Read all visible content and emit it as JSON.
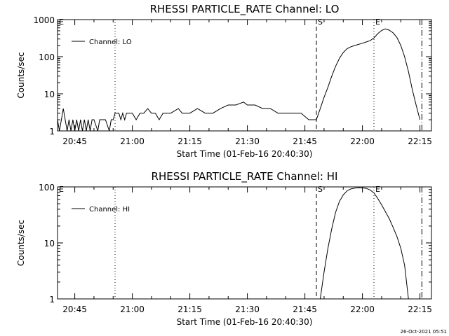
{
  "chart_data": [
    {
      "type": "line",
      "title": "RHESSI PARTICLE_RATE Channel: LO",
      "xlabel": "Start Time (01-Feb-16 20:40:30)",
      "ylabel": "Counts/sec",
      "yscale": "log",
      "ylim": [
        1,
        1000
      ],
      "xlim": [
        "20:40:30",
        "22:18:00"
      ],
      "x_tick_labels": [
        "20:45",
        "21:00",
        "21:15",
        "21:30",
        "21:45",
        "22:00",
        "22:15"
      ],
      "y_tick_labels": [
        "1",
        "10",
        "100",
        "1000"
      ],
      "legend": [
        "Channel: LO"
      ],
      "legend_position": "top-left",
      "markers": [
        {
          "label": "E",
          "time": "20:40:30",
          "style": "dashed"
        },
        {
          "label": "",
          "time": "20:55:30",
          "style": "dotted"
        },
        {
          "label": "S",
          "time": "21:48:00",
          "style": "dashed"
        },
        {
          "label": "E",
          "time": "22:03:00",
          "style": "dotted"
        },
        {
          "label": "",
          "time": "22:15:30",
          "style": "dash-dot"
        }
      ],
      "series": [
        {
          "name": "Channel: LO",
          "points": [
            [
              "20:40:30",
              2
            ],
            [
              "20:41:00",
              1
            ],
            [
              "20:41:30",
              2
            ],
            [
              "20:42:00",
              4
            ],
            [
              "20:42:30",
              2
            ],
            [
              "20:43:00",
              1
            ],
            [
              "20:43:30",
              2
            ],
            [
              "20:44:00",
              1
            ],
            [
              "20:44:30",
              2
            ],
            [
              "20:45:00",
              1
            ],
            [
              "20:45:30",
              2
            ],
            [
              "20:46:00",
              1
            ],
            [
              "20:46:30",
              2
            ],
            [
              "20:47:00",
              1
            ],
            [
              "20:47:30",
              2
            ],
            [
              "20:48:00",
              1
            ],
            [
              "20:48:30",
              2
            ],
            [
              "20:49:00",
              1
            ],
            [
              "20:49:30",
              2
            ],
            [
              "20:50:00",
              2
            ],
            [
              "20:51:00",
              1
            ],
            [
              "20:51:30",
              2
            ],
            [
              "20:52:00",
              2
            ],
            [
              "20:53:00",
              2
            ],
            [
              "20:54:00",
              1
            ],
            [
              "20:54:30",
              2
            ],
            [
              "20:55:00",
              2
            ],
            [
              "20:55:30",
              3
            ],
            [
              "20:56:30",
              3
            ],
            [
              "20:57:00",
              2
            ],
            [
              "20:57:30",
              3
            ],
            [
              "20:58:00",
              2
            ],
            [
              "20:58:30",
              3
            ],
            [
              "21:00:00",
              3
            ],
            [
              "21:01:00",
              2
            ],
            [
              "21:02:00",
              3
            ],
            [
              "21:03:00",
              3
            ],
            [
              "21:04:00",
              4
            ],
            [
              "21:05:00",
              3
            ],
            [
              "21:06:00",
              3
            ],
            [
              "21:07:00",
              2
            ],
            [
              "21:08:00",
              3
            ],
            [
              "21:10:00",
              3
            ],
            [
              "21:12:00",
              4
            ],
            [
              "21:13:00",
              3
            ],
            [
              "21:15:00",
              3
            ],
            [
              "21:17:00",
              4
            ],
            [
              "21:19:00",
              3
            ],
            [
              "21:21:00",
              3
            ],
            [
              "21:23:00",
              4
            ],
            [
              "21:25:00",
              5
            ],
            [
              "21:27:00",
              5
            ],
            [
              "21:29:00",
              6
            ],
            [
              "21:30:00",
              5
            ],
            [
              "21:32:00",
              5
            ],
            [
              "21:34:00",
              4
            ],
            [
              "21:36:00",
              4
            ],
            [
              "21:38:00",
              3
            ],
            [
              "21:40:00",
              3
            ],
            [
              "21:42:00",
              3
            ],
            [
              "21:44:00",
              3
            ],
            [
              "21:46:00",
              2
            ],
            [
              "21:48:00",
              2
            ],
            [
              "21:49:00",
              4
            ],
            [
              "21:50:00",
              8
            ],
            [
              "21:51:00",
              15
            ],
            [
              "21:52:00",
              30
            ],
            [
              "21:53:00",
              55
            ],
            [
              "21:54:00",
              90
            ],
            [
              "21:55:00",
              130
            ],
            [
              "21:56:00",
              165
            ],
            [
              "21:57:00",
              185
            ],
            [
              "21:58:00",
              200
            ],
            [
              "21:59:00",
              215
            ],
            [
              "22:00:00",
              230
            ],
            [
              "22:01:00",
              250
            ],
            [
              "22:02:00",
              270
            ],
            [
              "22:03:00",
              320
            ],
            [
              "22:04:00",
              420
            ],
            [
              "22:05:00",
              510
            ],
            [
              "22:06:00",
              560
            ],
            [
              "22:07:00",
              520
            ],
            [
              "22:08:00",
              440
            ],
            [
              "22:09:00",
              330
            ],
            [
              "22:10:00",
              200
            ],
            [
              "22:11:00",
              100
            ],
            [
              "22:12:00",
              40
            ],
            [
              "22:13:00",
              13
            ],
            [
              "22:14:00",
              5
            ],
            [
              "22:15:00",
              2
            ]
          ]
        }
      ]
    },
    {
      "type": "line",
      "title": "RHESSI PARTICLE_RATE Channel: HI",
      "xlabel": "Start Time (01-Feb-16 20:40:30)",
      "ylabel": "Counts/sec",
      "yscale": "log",
      "ylim": [
        1,
        100
      ],
      "xlim": [
        "20:40:30",
        "22:18:00"
      ],
      "x_tick_labels": [
        "20:45",
        "21:00",
        "21:15",
        "21:30",
        "21:45",
        "22:00",
        "22:15"
      ],
      "y_tick_labels": [
        "1",
        "10",
        "100"
      ],
      "legend": [
        "Channel: HI"
      ],
      "legend_position": "top-left",
      "markers": [
        {
          "label": "E",
          "time": "20:40:30",
          "style": "dashed"
        },
        {
          "label": "",
          "time": "20:55:30",
          "style": "dotted"
        },
        {
          "label": "S",
          "time": "21:48:00",
          "style": "dashed"
        },
        {
          "label": "E",
          "time": "22:03:00",
          "style": "dotted"
        },
        {
          "label": "",
          "time": "22:15:30",
          "style": "dash-dot"
        }
      ],
      "series": [
        {
          "name": "Channel: HI",
          "points": [
            [
              "21:49:00",
              1
            ],
            [
              "21:50:00",
              3
            ],
            [
              "21:51:00",
              8
            ],
            [
              "21:52:00",
              18
            ],
            [
              "21:53:00",
              35
            ],
            [
              "21:54:00",
              55
            ],
            [
              "21:55:00",
              72
            ],
            [
              "21:56:00",
              85
            ],
            [
              "21:57:00",
              92
            ],
            [
              "21:58:00",
              95
            ],
            [
              "21:59:00",
              97
            ],
            [
              "22:00:00",
              96
            ],
            [
              "22:01:00",
              94
            ],
            [
              "22:02:00",
              88
            ],
            [
              "22:03:00",
              78
            ],
            [
              "22:04:00",
              62
            ],
            [
              "22:05:00",
              48
            ],
            [
              "22:06:00",
              36
            ],
            [
              "22:07:00",
              27
            ],
            [
              "22:08:00",
              19
            ],
            [
              "22:09:00",
              13
            ],
            [
              "22:10:00",
              8
            ],
            [
              "22:11:00",
              4
            ],
            [
              "22:12:00",
              1
            ]
          ]
        }
      ]
    }
  ],
  "timestamp": "26-Oct-2021 05:51"
}
